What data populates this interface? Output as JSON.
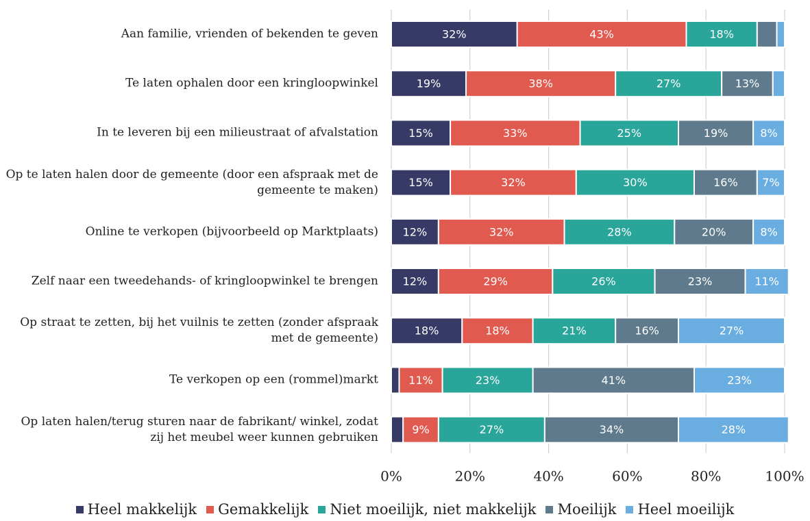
{
  "chart_data": {
    "type": "stacked_bar_horizontal",
    "categories": [
      "Aan familie, vrienden of bekenden te geven",
      "Te laten ophalen door een kringloopwinkel",
      "In te leveren bij een milieustraat of afvalstation",
      "Op te laten halen door de gemeente (door een afspraak met de gemeente te maken)",
      "Online te verkopen (bijvoorbeeld op Marktplaats)",
      "Zelf naar een tweedehands- of kringloopwinkel te brengen",
      "Op straat te zetten, bij het vuilnis te zetten (zonder afspraak met de gemeente)",
      "Te verkopen op een (rommel)markt",
      "Op laten halen/terug sturen naar de fabrikant/ winkel, zodat zij het meubel weer kunnen gebruiken"
    ],
    "series": [
      {
        "name": "Heel makkelijk",
        "color": "#363a64",
        "values": [
          32,
          19,
          15,
          15,
          12,
          12,
          18,
          2,
          3
        ],
        "value_labels": [
          "32%",
          "19%",
          "15%",
          "15%",
          "12%",
          "12%",
          "18%",
          null,
          null
        ]
      },
      {
        "name": "Gemakkelijk",
        "color": "#e05a50",
        "values": [
          43,
          38,
          33,
          32,
          32,
          29,
          18,
          11,
          9
        ],
        "value_labels": [
          "43%",
          "38%",
          "33%",
          "32%",
          "32%",
          "29%",
          "18%",
          "11%",
          "9%"
        ]
      },
      {
        "name": "Niet moeilijk, niet makkelijk",
        "color": "#2aa59a",
        "values": [
          18,
          27,
          25,
          30,
          28,
          26,
          21,
          23,
          27
        ],
        "value_labels": [
          "18%",
          "27%",
          "25%",
          "30%",
          "28%",
          "26%",
          "21%",
          "23%",
          "27%"
        ]
      },
      {
        "name": "Moeilijk",
        "color": "#5f7a8c",
        "values": [
          5,
          13,
          19,
          16,
          20,
          23,
          16,
          41,
          34
        ],
        "value_labels": [
          null,
          "13%",
          "19%",
          "16%",
          "20%",
          "23%",
          "16%",
          "41%",
          "34%"
        ]
      },
      {
        "name": "Heel moeilijk",
        "color": "#6aade0",
        "values": [
          2,
          3,
          8,
          7,
          8,
          11,
          27,
          23,
          28
        ],
        "value_labels": [
          null,
          null,
          "8%",
          "7%",
          "8%",
          "11%",
          "27%",
          "23%",
          "28%"
        ]
      }
    ],
    "xlim": [
      0,
      100
    ],
    "xticks": [
      {
        "value": 0,
        "label": "0%"
      },
      {
        "value": 20,
        "label": "20%"
      },
      {
        "value": 40,
        "label": "40%"
      },
      {
        "value": 60,
        "label": "60%"
      },
      {
        "value": 80,
        "label": "80%"
      },
      {
        "value": 100,
        "label": "100%"
      }
    ],
    "grid": true,
    "legend": "bottom"
  }
}
